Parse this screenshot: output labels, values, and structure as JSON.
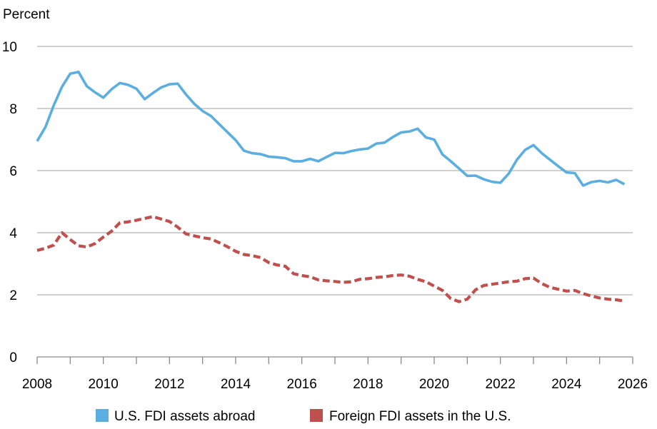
{
  "chart_data": {
    "type": "line",
    "ylabel": "Percent",
    "xlim": [
      2008,
      2026
    ],
    "ylim": [
      0,
      10
    ],
    "x_ticks": [
      "2008",
      "2010",
      "2012",
      "2014",
      "2016",
      "2018",
      "2020",
      "2022",
      "2024",
      "2026"
    ],
    "y_ticks": [
      "0",
      "2",
      "4",
      "6",
      "8",
      "10"
    ],
    "grid": "horizontal",
    "legend": "bottom",
    "series": [
      {
        "name": "U.S. FDI assets abroad",
        "color": "#5BAEE0",
        "style": "solid",
        "points": [
          [
            2008.0,
            6.95
          ],
          [
            2008.25,
            7.4
          ],
          [
            2008.5,
            8.1
          ],
          [
            2008.75,
            8.7
          ],
          [
            2009.0,
            9.12
          ],
          [
            2009.25,
            9.18
          ],
          [
            2009.5,
            8.72
          ],
          [
            2009.75,
            8.52
          ],
          [
            2010.0,
            8.35
          ],
          [
            2010.25,
            8.62
          ],
          [
            2010.5,
            8.82
          ],
          [
            2010.75,
            8.76
          ],
          [
            2011.0,
            8.64
          ],
          [
            2011.25,
            8.3
          ],
          [
            2011.5,
            8.5
          ],
          [
            2011.75,
            8.68
          ],
          [
            2012.0,
            8.78
          ],
          [
            2012.25,
            8.8
          ],
          [
            2012.5,
            8.45
          ],
          [
            2012.75,
            8.15
          ],
          [
            2013.0,
            7.92
          ],
          [
            2013.25,
            7.76
          ],
          [
            2013.5,
            7.5
          ],
          [
            2013.75,
            7.24
          ],
          [
            2014.0,
            6.98
          ],
          [
            2014.25,
            6.64
          ],
          [
            2014.5,
            6.56
          ],
          [
            2014.75,
            6.53
          ],
          [
            2015.0,
            6.45
          ],
          [
            2015.25,
            6.43
          ],
          [
            2015.5,
            6.4
          ],
          [
            2015.75,
            6.3
          ],
          [
            2016.0,
            6.3
          ],
          [
            2016.25,
            6.38
          ],
          [
            2016.5,
            6.3
          ],
          [
            2016.75,
            6.44
          ],
          [
            2017.0,
            6.57
          ],
          [
            2017.25,
            6.56
          ],
          [
            2017.5,
            6.63
          ],
          [
            2017.75,
            6.68
          ],
          [
            2018.0,
            6.71
          ],
          [
            2018.25,
            6.87
          ],
          [
            2018.5,
            6.9
          ],
          [
            2018.75,
            7.08
          ],
          [
            2019.0,
            7.23
          ],
          [
            2019.25,
            7.26
          ],
          [
            2019.5,
            7.35
          ],
          [
            2019.75,
            7.07
          ],
          [
            2020.0,
            7.0
          ],
          [
            2020.25,
            6.52
          ],
          [
            2020.5,
            6.3
          ],
          [
            2020.75,
            6.07
          ],
          [
            2021.0,
            5.83
          ],
          [
            2021.25,
            5.84
          ],
          [
            2021.5,
            5.72
          ],
          [
            2021.75,
            5.64
          ],
          [
            2022.0,
            5.61
          ],
          [
            2022.25,
            5.9
          ],
          [
            2022.5,
            6.35
          ],
          [
            2022.75,
            6.67
          ],
          [
            2023.0,
            6.82
          ],
          [
            2023.25,
            6.56
          ],
          [
            2023.5,
            6.35
          ],
          [
            2023.75,
            6.14
          ],
          [
            2024.0,
            5.94
          ],
          [
            2024.25,
            5.92
          ],
          [
            2024.5,
            5.52
          ],
          [
            2024.75,
            5.63
          ],
          [
            2025.0,
            5.67
          ],
          [
            2025.25,
            5.62
          ],
          [
            2025.5,
            5.7
          ],
          [
            2025.75,
            5.56
          ]
        ]
      },
      {
        "name": "Foreign FDI assets in the U.S.",
        "color": "#C0504D",
        "style": "dashed",
        "points": [
          [
            2008.0,
            3.43
          ],
          [
            2008.25,
            3.5
          ],
          [
            2008.5,
            3.6
          ],
          [
            2008.75,
            4.0
          ],
          [
            2009.0,
            3.78
          ],
          [
            2009.25,
            3.58
          ],
          [
            2009.5,
            3.54
          ],
          [
            2009.75,
            3.65
          ],
          [
            2010.0,
            3.86
          ],
          [
            2010.25,
            4.05
          ],
          [
            2010.5,
            4.32
          ],
          [
            2010.75,
            4.35
          ],
          [
            2011.0,
            4.4
          ],
          [
            2011.25,
            4.46
          ],
          [
            2011.5,
            4.52
          ],
          [
            2011.75,
            4.44
          ],
          [
            2012.0,
            4.36
          ],
          [
            2012.25,
            4.18
          ],
          [
            2012.5,
            3.96
          ],
          [
            2012.75,
            3.9
          ],
          [
            2013.0,
            3.84
          ],
          [
            2013.25,
            3.8
          ],
          [
            2013.5,
            3.68
          ],
          [
            2013.75,
            3.55
          ],
          [
            2014.0,
            3.4
          ],
          [
            2014.25,
            3.3
          ],
          [
            2014.5,
            3.26
          ],
          [
            2014.75,
            3.2
          ],
          [
            2015.0,
            3.04
          ],
          [
            2015.25,
            2.96
          ],
          [
            2015.5,
            2.92
          ],
          [
            2015.75,
            2.68
          ],
          [
            2016.0,
            2.62
          ],
          [
            2016.25,
            2.58
          ],
          [
            2016.5,
            2.48
          ],
          [
            2016.75,
            2.45
          ],
          [
            2017.0,
            2.43
          ],
          [
            2017.25,
            2.4
          ],
          [
            2017.5,
            2.42
          ],
          [
            2017.75,
            2.5
          ],
          [
            2018.0,
            2.52
          ],
          [
            2018.25,
            2.56
          ],
          [
            2018.5,
            2.58
          ],
          [
            2018.75,
            2.62
          ],
          [
            2019.0,
            2.64
          ],
          [
            2019.25,
            2.6
          ],
          [
            2019.5,
            2.5
          ],
          [
            2019.75,
            2.42
          ],
          [
            2020.0,
            2.28
          ],
          [
            2020.25,
            2.14
          ],
          [
            2020.5,
            1.88
          ],
          [
            2020.75,
            1.78
          ],
          [
            2021.0,
            1.86
          ],
          [
            2021.25,
            2.16
          ],
          [
            2021.5,
            2.3
          ],
          [
            2021.75,
            2.34
          ],
          [
            2022.0,
            2.38
          ],
          [
            2022.25,
            2.42
          ],
          [
            2022.5,
            2.44
          ],
          [
            2022.75,
            2.52
          ],
          [
            2023.0,
            2.54
          ],
          [
            2023.25,
            2.36
          ],
          [
            2023.5,
            2.24
          ],
          [
            2023.75,
            2.18
          ],
          [
            2024.0,
            2.12
          ],
          [
            2024.25,
            2.14
          ],
          [
            2024.5,
            2.04
          ],
          [
            2024.75,
            1.96
          ],
          [
            2025.0,
            1.9
          ],
          [
            2025.25,
            1.86
          ],
          [
            2025.5,
            1.84
          ],
          [
            2025.75,
            1.8
          ]
        ]
      }
    ]
  }
}
